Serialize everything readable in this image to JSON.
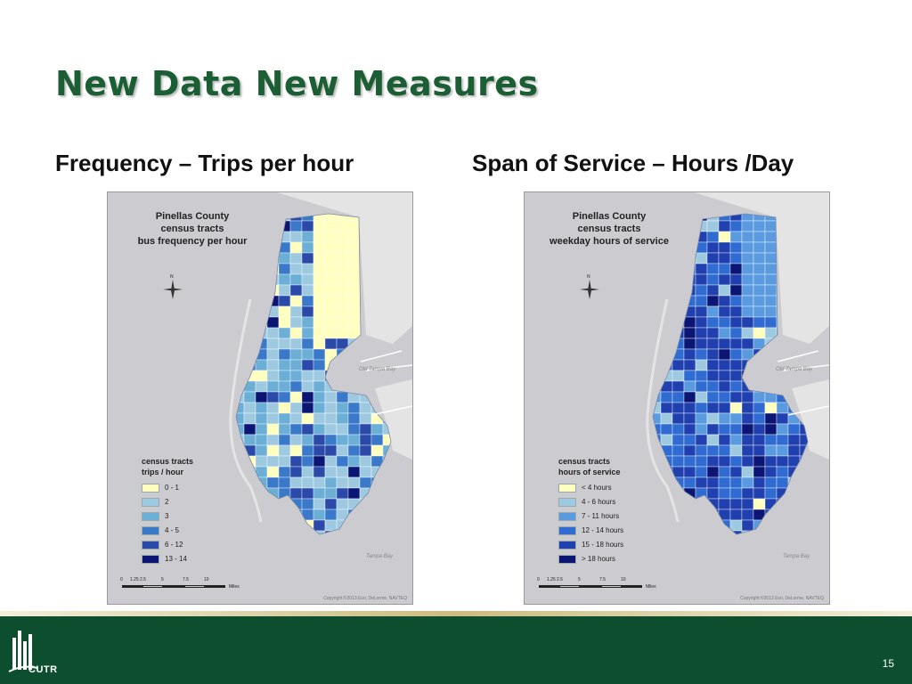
{
  "slide": {
    "title": "New Data New Measures",
    "page_number": "15"
  },
  "panels": [
    {
      "subtitle": "Frequency – Trips per hour",
      "map_title": [
        "Pinellas County",
        "census tracts",
        "bus frequency per hour"
      ],
      "legend_title": [
        "census tracts",
        "trips / hour"
      ],
      "legend": [
        {
          "label": "0 - 1",
          "color": "#ffffbf"
        },
        {
          "label": "2",
          "color": "#9ecae1"
        },
        {
          "label": "3",
          "color": "#6baed6"
        },
        {
          "label": "4 - 5",
          "color": "#3a79c9"
        },
        {
          "label": "6 - 12",
          "color": "#2a49a8"
        },
        {
          "label": "13 - 14",
          "color": "#0b1573"
        }
      ],
      "north_label": "N",
      "bay_labels": [
        "Old Tampa Bay",
        "Tampa Bay"
      ],
      "copyright": "Copyright:©2013 Esri, DeLorme, NAVTEQ",
      "scale_ticks": [
        "0",
        "1.25",
        "2.5",
        "5",
        "7.5",
        "10"
      ],
      "scale_unit": "Miles"
    },
    {
      "subtitle": "Span of Service – Hours /Day",
      "map_title": [
        "Pinellas County",
        "census tracts",
        "weekday hours of service"
      ],
      "legend_title": [
        "census tracts",
        "hours of service"
      ],
      "legend": [
        {
          "label": "< 4 hours",
          "color": "#ffffbf"
        },
        {
          "label": "4 - 6 hours",
          "color": "#9ecae1"
        },
        {
          "label": "7 - 11 hours",
          "color": "#5a9be0"
        },
        {
          "label": "12 - 14 hours",
          "color": "#2f6bd0"
        },
        {
          "label": "15 - 18 hours",
          "color": "#2040b0"
        },
        {
          "label": "> 18 hours",
          "color": "#0b1573"
        }
      ],
      "north_label": "N",
      "bay_labels": [
        "Old Tampa Bay",
        "Tampa Bay"
      ],
      "copyright": "Copyright:©2013 Esri, DeLorme, NAVTEQ",
      "scale_ticks": [
        "0",
        "1.25",
        "2.5",
        "5",
        "7.5",
        "10"
      ],
      "scale_unit": "Miles"
    }
  ],
  "logo": {
    "text": "CUTR"
  },
  "colors": {
    "title_green": "#1b5e34",
    "footer_green": "#0d4e2e",
    "gold_rule": "#cdbb80",
    "water": "#ccccd0",
    "land": "#e6e6e6"
  }
}
